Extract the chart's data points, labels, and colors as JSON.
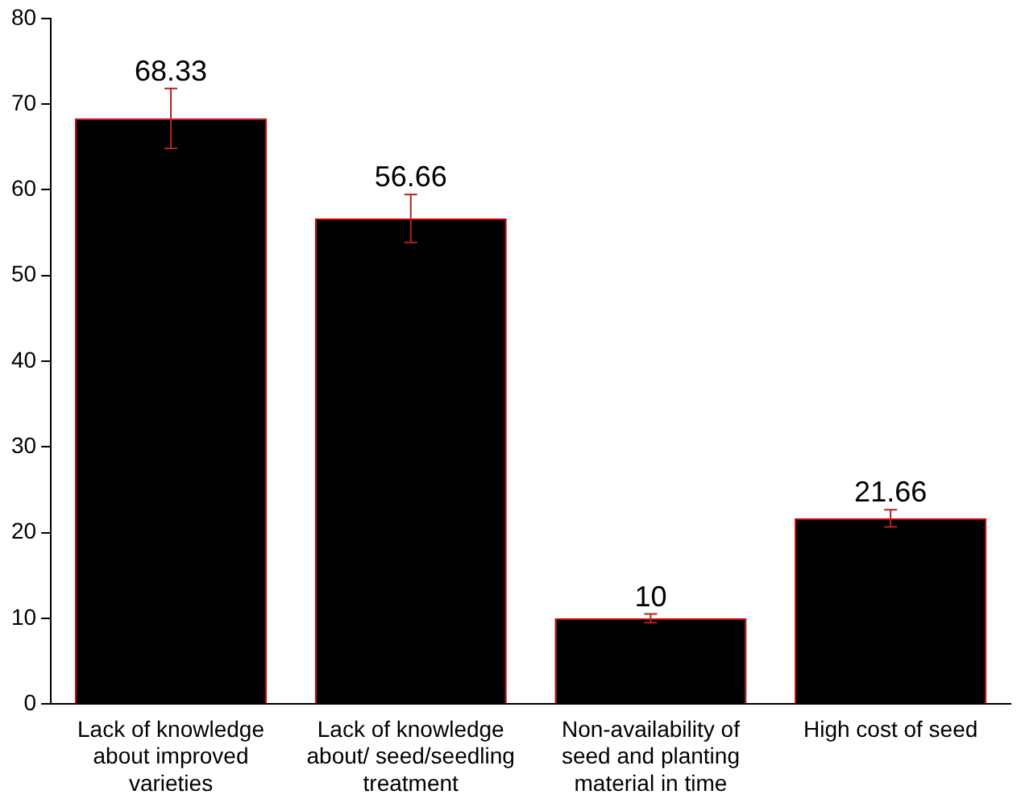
{
  "chart_data": {
    "type": "bar",
    "categories": [
      "Lack of knowledge about improved varieties",
      "Lack of knowledge about/ seed/seedling treatment",
      "Non-availability of seed and planting material in time",
      "High cost of seed"
    ],
    "values": [
      68.33,
      56.66,
      10,
      21.66
    ],
    "errors": [
      3.5,
      2.8,
      0.5,
      1
    ],
    "color": "#000000",
    "data_labels": true,
    "ylim": [
      0,
      80
    ],
    "yticks": [
      0,
      10,
      20,
      30,
      40,
      50,
      60,
      70,
      80
    ],
    "grid": false,
    "legend": false
  }
}
